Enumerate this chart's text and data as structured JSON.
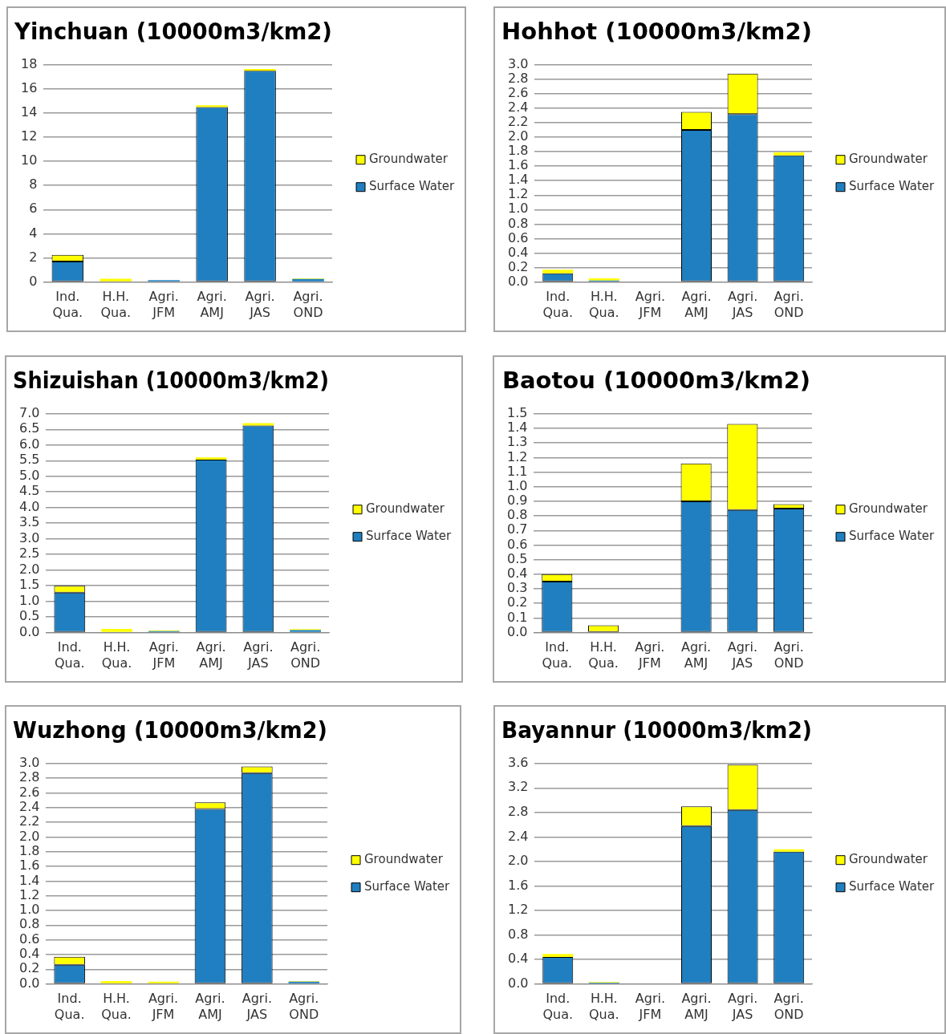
{
  "chart_data": [
    {
      "type": "bar",
      "title": "Yinchuan (10000m3/km2)",
      "categories": [
        "Ind. Qua.",
        "H.H. Qua.",
        "Agri. JFM",
        "Agri. AMJ",
        "Agri. JAS",
        "Agri. OND"
      ],
      "stacked": true,
      "grid": "y",
      "legend": "right",
      "ylim": [
        0,
        18
      ],
      "yticks": [
        0,
        2,
        4,
        6,
        8,
        10,
        12,
        14,
        16,
        18
      ],
      "series": [
        {
          "name": "Surface Water",
          "color": "#1f7fc0",
          "values": [
            1.7,
            null,
            0.15,
            14.5,
            17.5,
            0.25
          ]
        },
        {
          "name": "Groundwater",
          "color": "#ffff00",
          "values": [
            0.55,
            0.28,
            null,
            0.15,
            0.15,
            0.05
          ]
        }
      ]
    },
    {
      "type": "bar",
      "title": "Hohhot (10000m3/km2)",
      "categories": [
        "Ind. Qua.",
        "H.H. Qua.",
        "Agri. JFM",
        "Agri. AMJ",
        "Agri. JAS",
        "Agri. OND"
      ],
      "stacked": true,
      "grid": "y",
      "legend": "right",
      "ylim": [
        0,
        3
      ],
      "yticks": [
        {
          "value": 0,
          "label": "0.0"
        },
        0.2,
        0.4,
        0.6,
        0.8,
        {
          "value": 1,
          "label": "1.0"
        },
        1.2,
        1.4,
        1.6,
        1.8,
        {
          "value": 2,
          "label": "2.0"
        },
        2.2,
        2.4,
        2.6,
        2.8,
        {
          "value": 3,
          "label": "3.0"
        }
      ],
      "series": [
        {
          "name": "Surface Water",
          "color": "#1f7fc0",
          "values": [
            0.12,
            0.02,
            0,
            2.1,
            2.32,
            1.75
          ]
        },
        {
          "name": "Groundwater",
          "color": "#ffff00",
          "values": [
            0.05,
            0.03,
            0,
            0.25,
            0.56,
            0.04
          ]
        }
      ]
    },
    {
      "type": "bar",
      "title": "Shizuishan (10000m3/km2)",
      "categories": [
        "Ind. Qua.",
        "H.H. Qua.",
        "Agri. JFM",
        "Agri. AMJ",
        "Agri. JAS",
        "Agri. OND"
      ],
      "stacked": true,
      "grid": "y",
      "legend": "right",
      "ylim": [
        0,
        7
      ],
      "yticks": [
        {
          "value": 0,
          "label": "0.0"
        },
        0.5,
        {
          "value": 1,
          "label": "1.0"
        },
        1.5,
        {
          "value": 2,
          "label": "2.0"
        },
        2.5,
        {
          "value": 3,
          "label": "3.0"
        },
        3.5,
        {
          "value": 4,
          "label": "4.0"
        },
        4.5,
        {
          "value": 5,
          "label": "5.0"
        },
        5.5,
        {
          "value": 6,
          "label": "6.0"
        },
        6.5,
        {
          "value": 7,
          "label": "7.0"
        }
      ],
      "series": [
        {
          "name": "Surface Water",
          "color": "#1f7fc0",
          "values": [
            1.28,
            0.02,
            0.05,
            5.53,
            6.62,
            0.08
          ]
        },
        {
          "name": "Groundwater",
          "color": "#ffff00",
          "values": [
            0.22,
            0.1,
            0.02,
            0.07,
            0.08,
            0.03
          ]
        }
      ]
    },
    {
      "type": "bar",
      "title": "Baotou (10000m3/km2)",
      "categories": [
        "Ind. Qua.",
        "H.H. Qua.",
        "Agri. JFM",
        "Agri. AMJ",
        "Agri. JAS",
        "Agri. OND"
      ],
      "stacked": true,
      "grid": "y",
      "legend": "right",
      "ylim": [
        0,
        1.5
      ],
      "yticks": [
        {
          "value": 0,
          "label": "0.0"
        },
        0.1,
        0.2,
        0.3,
        0.4,
        0.5,
        0.6,
        0.7,
        0.8,
        0.9,
        {
          "value": 1,
          "label": "1.0"
        },
        1.1,
        1.2,
        1.3,
        1.4,
        1.5
      ],
      "series": [
        {
          "name": "Surface Water",
          "color": "#1f7fc0",
          "values": [
            0.35,
            0,
            0,
            0.9,
            0.84,
            0.85
          ]
        },
        {
          "name": "Groundwater",
          "color": "#ffff00",
          "values": [
            0.05,
            0.05,
            0,
            0.26,
            0.59,
            0.03
          ]
        }
      ]
    },
    {
      "type": "bar",
      "title": "Wuzhong (10000m3/km2)",
      "categories": [
        "Ind. Qua.",
        "H.H. Qua.",
        "Agri. JFM",
        "Agri. AMJ",
        "Agri. JAS",
        "Agri. OND"
      ],
      "stacked": true,
      "grid": "y",
      "legend": "right",
      "ylim": [
        0,
        3
      ],
      "yticks": [
        {
          "value": 0,
          "label": "0.0"
        },
        0.2,
        0.4,
        0.6,
        0.8,
        {
          "value": 1,
          "label": "1.0"
        },
        1.2,
        1.4,
        1.6,
        1.8,
        {
          "value": 2,
          "label": "2.0"
        },
        2.2,
        2.4,
        2.6,
        2.8,
        {
          "value": 3,
          "label": "3.0"
        }
      ],
      "series": [
        {
          "name": "Surface Water",
          "color": "#1f7fc0",
          "values": [
            0.26,
            0.01,
            0.01,
            2.38,
            2.87,
            0.03
          ]
        },
        {
          "name": "Groundwater",
          "color": "#ffff00",
          "values": [
            0.11,
            0.03,
            0.02,
            0.09,
            0.09,
            0.01
          ]
        }
      ]
    },
    {
      "type": "bar",
      "title": "Bayannur (10000m3/km2)",
      "categories": [
        "Ind. Qua.",
        "H.H. Qua.",
        "Agri. JFM",
        "Agri. AMJ",
        "Agri. JAS",
        "Agri. OND"
      ],
      "stacked": true,
      "grid": "y",
      "legend": "right",
      "ylim": [
        0,
        3.6
      ],
      "yticks": [
        {
          "value": 0,
          "label": "0.0"
        },
        0.4,
        0.8,
        1.2,
        1.6,
        {
          "value": 2,
          "label": "2.0"
        },
        2.4,
        2.8,
        3.2,
        3.6
      ],
      "series": [
        {
          "name": "Surface Water",
          "color": "#1f7fc0",
          "values": [
            0.44,
            0.02,
            0,
            2.58,
            2.84,
            2.16
          ]
        },
        {
          "name": "Groundwater",
          "color": "#ffff00",
          "values": [
            0.05,
            0.01,
            0,
            0.32,
            0.74,
            0.04
          ]
        }
      ]
    }
  ]
}
